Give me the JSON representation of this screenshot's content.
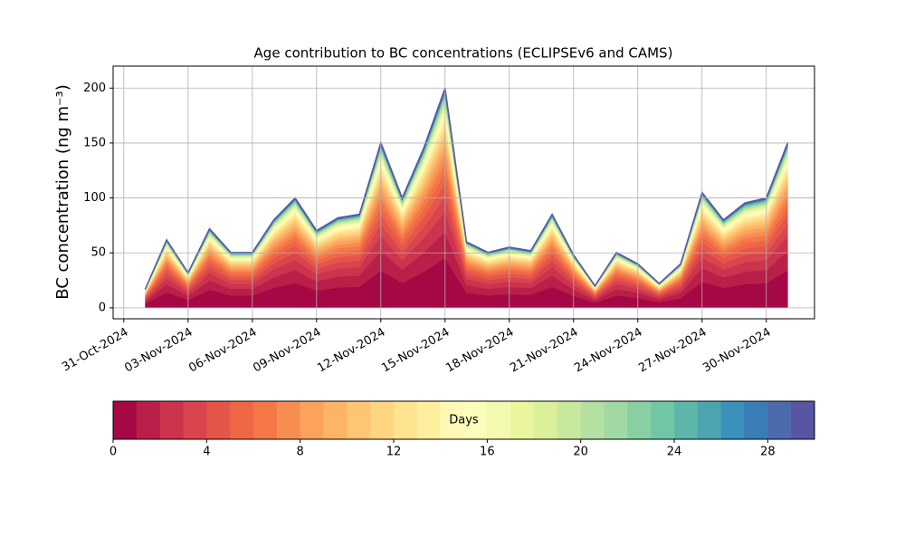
{
  "chart_data": {
    "type": "stacked_area",
    "title": "Age contribution to BC concentrations (ECLIPSEv6 and CAMS)",
    "ylabel": "BC concentration (ng m⁻³)",
    "x": [
      "2024-11-01",
      "2024-11-02",
      "2024-11-03",
      "2024-11-04",
      "2024-11-05",
      "2024-11-06",
      "2024-11-07",
      "2024-11-08",
      "2024-11-09",
      "2024-11-10",
      "2024-11-11",
      "2024-11-12",
      "2024-11-13",
      "2024-11-14",
      "2024-11-15",
      "2024-11-16",
      "2024-11-17",
      "2024-11-18",
      "2024-11-19",
      "2024-11-20",
      "2024-11-21",
      "2024-11-22",
      "2024-11-23",
      "2024-11-24",
      "2024-11-25",
      "2024-11-26",
      "2024-11-27",
      "2024-11-28",
      "2024-11-29",
      "2024-11-30",
      "2024-12-01"
    ],
    "xlim": [
      "2024-10-30T12:00",
      "2024-12-02T06:00"
    ],
    "xticks": [
      {
        "value": "2024-10-31",
        "label": "31-Oct-2024"
      },
      {
        "value": "2024-11-03",
        "label": "03-Nov-2024"
      },
      {
        "value": "2024-11-06",
        "label": "06-Nov-2024"
      },
      {
        "value": "2024-11-09",
        "label": "09-Nov-2024"
      },
      {
        "value": "2024-11-12",
        "label": "12-Nov-2024"
      },
      {
        "value": "2024-11-15",
        "label": "15-Nov-2024"
      },
      {
        "value": "2024-11-18",
        "label": "18-Nov-2024"
      },
      {
        "value": "2024-11-21",
        "label": "21-Nov-2024"
      },
      {
        "value": "2024-11-24",
        "label": "24-Nov-2024"
      },
      {
        "value": "2024-11-27",
        "label": "27-Nov-2024"
      },
      {
        "value": "2024-11-30",
        "label": "30-Nov-2024"
      }
    ],
    "ylim": [
      -10,
      220
    ],
    "yticks": [
      0,
      50,
      100,
      150,
      200
    ],
    "grid": true,
    "series": [
      {
        "color": "#a50844",
        "values": [
          3.8,
          14.0,
          7.2,
          16.3,
          11.3,
          11.3,
          18.1,
          22.6,
          15.8,
          18.5,
          19.2,
          33.9,
          22.6,
          32.8,
          45.2,
          13.6,
          11.3,
          12.4,
          11.8,
          19.2,
          10.8,
          4.5,
          11.3,
          9.0,
          5.0,
          9.0,
          23.7,
          18.1,
          21.5,
          22.6,
          33.9
        ]
      },
      {
        "color": "#b91f48",
        "values": [
          2.0,
          7.4,
          3.8,
          8.6,
          6,
          6,
          9.6,
          12,
          8.4,
          9.8,
          10.2,
          18,
          12,
          17.4,
          24,
          7.2,
          6,
          6.6,
          6.2,
          10.2,
          5.8,
          2.4,
          6,
          4.8,
          2.6,
          4.8,
          12.6,
          9.6,
          11.4,
          12,
          18
        ]
      },
      {
        "color": "#cc334d",
        "values": [
          1.5,
          5.6,
          2.9,
          6.5,
          4.5,
          4.5,
          7.2,
          9,
          6.3,
          7.4,
          7.7,
          13.5,
          9,
          13.1,
          18,
          5.4,
          4.5,
          5,
          4.7,
          7.7,
          4.3,
          1.8,
          4.5,
          3.6,
          2,
          3.6,
          9.5,
          7.2,
          8.6,
          9,
          13.5
        ]
      },
      {
        "color": "#d9444e",
        "values": [
          1.2,
          4.3,
          2.2,
          5,
          3.5,
          3.5,
          5.6,
          7,
          4.9,
          5.7,
          6,
          10.5,
          7,
          10.2,
          14,
          4.2,
          3.5,
          3.9,
          3.6,
          6,
          3.4,
          1.4,
          3.5,
          2.8,
          1.5,
          2.8,
          7.4,
          5.6,
          6.7,
          7,
          10.5
        ]
      },
      {
        "color": "#e5554a",
        "values": [
          1,
          3.7,
          1.9,
          4.3,
          3,
          3,
          4.8,
          6,
          4.2,
          4.9,
          5.1,
          9,
          6,
          8.7,
          12,
          3.6,
          3,
          3.3,
          3.1,
          5.1,
          2.9,
          1.2,
          3,
          2.4,
          1.3,
          2.4,
          6.3,
          4.8,
          5.7,
          6,
          9
        ]
      },
      {
        "color": "#ef6645",
        "values": [
          0.9,
          3.1,
          1.6,
          3.6,
          2.5,
          2.5,
          4,
          5,
          3.5,
          4.1,
          4.3,
          7.5,
          5,
          7.3,
          10,
          3,
          2.5,
          2.8,
          2.6,
          4.3,
          2.4,
          1,
          2.5,
          2,
          1.1,
          2,
          5.3,
          4,
          4.8,
          5,
          7.5
        ]
      },
      {
        "color": "#f57748",
        "values": [
          0.8,
          2.8,
          1.4,
          3.2,
          2.3,
          2.3,
          3.6,
          4.5,
          3.2,
          3.7,
          3.8,
          6.8,
          4.5,
          6.5,
          9,
          2.7,
          2.3,
          2.5,
          2.3,
          3.8,
          2.2,
          0.9,
          2.3,
          1.8,
          1,
          1.8,
          4.7,
          3.6,
          4.3,
          4.5,
          6.8
        ]
      },
      {
        "color": "#f88d52",
        "values": [
          0.7,
          2.5,
          1.3,
          2.9,
          2,
          2,
          3.2,
          4,
          2.8,
          3.3,
          3.4,
          6,
          4,
          5.8,
          8,
          2.4,
          2,
          2.2,
          2.1,
          3.4,
          1.9,
          0.8,
          2,
          1.6,
          0.9,
          1.6,
          4.2,
          3.2,
          3.8,
          4,
          6
        ]
      },
      {
        "color": "#fba25c",
        "values": [
          0.6,
          2.2,
          1.1,
          2.5,
          1.8,
          1.8,
          2.8,
          3.5,
          2.5,
          2.9,
          3,
          5.3,
          3.5,
          5.1,
          7,
          2.1,
          1.8,
          1.9,
          1.8,
          3,
          1.7,
          0.7,
          1.8,
          1.4,
          0.8,
          1.4,
          3.7,
          2.8,
          3.3,
          3.5,
          5.3
        ]
      },
      {
        "color": "#fdb466",
        "values": [
          0.5,
          1.9,
          1,
          2.2,
          1.5,
          1.5,
          2.4,
          3,
          2.1,
          2.5,
          2.6,
          4.5,
          3,
          4.4,
          6,
          1.8,
          1.5,
          1.7,
          1.6,
          2.6,
          1.4,
          0.6,
          1.5,
          1.2,
          0.7,
          1.2,
          3.2,
          2.4,
          2.9,
          3,
          4.5
        ]
      },
      {
        "color": "#fdc574",
        "values": [
          0.5,
          1.7,
          0.9,
          2,
          1.4,
          1.4,
          2.2,
          2.8,
          2,
          2.3,
          2.4,
          4.2,
          2.8,
          4.1,
          5.6,
          1.7,
          1.4,
          1.5,
          1.5,
          2.4,
          1.3,
          0.6,
          1.4,
          1.1,
          0.6,
          1.1,
          2.9,
          2.2,
          2.7,
          2.8,
          4.2
        ]
      },
      {
        "color": "#fed681",
        "values": [
          0.4,
          1.6,
          0.8,
          1.8,
          1.3,
          1.3,
          2,
          2.5,
          1.8,
          2.1,
          2.1,
          3.8,
          2.5,
          3.6,
          5,
          1.5,
          1.3,
          1.4,
          1.3,
          2.1,
          1.2,
          0.5,
          1.3,
          1,
          0.6,
          1,
          2.6,
          2,
          2.4,
          2.5,
          3.8
        ]
      },
      {
        "color": "#fee390",
        "values": [
          0.4,
          1.4,
          0.7,
          1.6,
          1.1,
          1.1,
          1.8,
          2.2,
          1.5,
          1.8,
          1.9,
          3.3,
          2.2,
          3.2,
          4.4,
          1.3,
          1.1,
          1.2,
          1.1,
          1.9,
          1.1,
          0.4,
          1.1,
          0.9,
          0.5,
          0.9,
          2.3,
          1.8,
          2.1,
          2.2,
          3.3
        ]
      },
      {
        "color": "#feef9f",
        "values": [
          0.3,
          1.2,
          0.6,
          1.4,
          1,
          1,
          1.6,
          2,
          1.4,
          1.6,
          1.7,
          3,
          2,
          2.9,
          4,
          1.2,
          1,
          1.1,
          1,
          1.7,
          1,
          0.4,
          1,
          0.8,
          0.4,
          0.8,
          2.1,
          1.6,
          1.9,
          2,
          3
        ]
      },
      {
        "color": "#fefab6",
        "values": [
          0.3,
          1.1,
          0.6,
          1.3,
          0.9,
          0.9,
          1.4,
          1.8,
          1.3,
          1.5,
          1.5,
          2.7,
          1.8,
          2.6,
          3.6,
          1.1,
          0.9,
          1,
          0.9,
          1.5,
          0.9,
          0.4,
          0.9,
          0.7,
          0.4,
          0.7,
          1.9,
          1.4,
          1.7,
          1.8,
          2.7
        ]
      },
      {
        "color": "#fbfdbb",
        "values": [
          0.3,
          1,
          0.5,
          1.2,
          0.8,
          0.8,
          1.3,
          1.6,
          1.1,
          1.3,
          1.4,
          2.4,
          1.6,
          2.3,
          3.2,
          1,
          0.8,
          0.9,
          0.8,
          1.4,
          0.8,
          0.3,
          0.8,
          0.6,
          0.4,
          0.6,
          1.7,
          1.3,
          1.5,
          1.6,
          2.4
        ]
      },
      {
        "color": "#f3faaf",
        "values": [
          0.2,
          0.9,
          0.4,
          1,
          0.7,
          0.7,
          1.1,
          1.4,
          1,
          1.1,
          1.2,
          2.1,
          1.4,
          2,
          2.8,
          0.8,
          0.7,
          0.8,
          0.7,
          1.2,
          0.7,
          0.3,
          0.7,
          0.6,
          0.3,
          0.6,
          1.5,
          1.1,
          1.3,
          1.4,
          2.1
        ]
      },
      {
        "color": "#e9f69c",
        "values": [
          0.2,
          0.7,
          0.4,
          0.9,
          0.6,
          0.6,
          1,
          1.2,
          0.8,
          1,
          1,
          1.8,
          1.2,
          1.7,
          2.4,
          0.7,
          0.6,
          0.7,
          0.6,
          1,
          0.6,
          0.2,
          0.6,
          0.5,
          0.3,
          0.5,
          1.3,
          1,
          1.1,
          1.2,
          1.8
        ]
      },
      {
        "color": "#dcf09a",
        "values": [
          0.2,
          0.7,
          0.4,
          0.8,
          0.6,
          0.6,
          0.9,
          1.1,
          0.8,
          0.9,
          0.9,
          1.7,
          1.1,
          1.6,
          2.2,
          0.7,
          0.6,
          0.6,
          0.6,
          0.9,
          0.5,
          0.2,
          0.6,
          0.4,
          0.2,
          0.4,
          1.2,
          0.9,
          1,
          1.1,
          1.7
        ]
      },
      {
        "color": "#c8e89e",
        "values": [
          0.2,
          0.6,
          0.3,
          0.7,
          0.5,
          0.5,
          0.8,
          1,
          0.7,
          0.8,
          0.9,
          1.5,
          1,
          1.5,
          2,
          0.6,
          0.5,
          0.6,
          0.5,
          0.9,
          0.5,
          0.2,
          0.5,
          0.4,
          0.2,
          0.4,
          1.1,
          0.8,
          1,
          1,
          1.5
        ]
      },
      {
        "color": "#b4e0a2",
        "values": [
          0.2,
          0.6,
          0.3,
          0.6,
          0.5,
          0.5,
          0.7,
          0.9,
          0.6,
          0.7,
          0.8,
          1.4,
          0.9,
          1.3,
          1.8,
          0.5,
          0.5,
          0.5,
          0.5,
          0.8,
          0.4,
          0.2,
          0.5,
          0.4,
          0.2,
          0.4,
          0.9,
          0.7,
          0.9,
          0.9,
          1.4
        ]
      },
      {
        "color": "#a1d9a4",
        "values": [
          0.1,
          0.5,
          0.3,
          0.6,
          0.4,
          0.4,
          0.6,
          0.8,
          0.6,
          0.7,
          0.7,
          1.2,
          0.8,
          1.2,
          1.6,
          0.5,
          0.4,
          0.4,
          0.4,
          0.7,
          0.4,
          0.2,
          0.4,
          0.3,
          0.2,
          0.3,
          0.8,
          0.6,
          0.8,
          0.8,
          1.2
        ]
      },
      {
        "color": "#88d0a4",
        "values": [
          0.1,
          0.4,
          0.2,
          0.5,
          0.4,
          0.4,
          0.6,
          0.7,
          0.5,
          0.6,
          0.6,
          1.1,
          0.7,
          1,
          1.4,
          0.4,
          0.4,
          0.4,
          0.4,
          0.6,
          0.3,
          0.1,
          0.4,
          0.3,
          0.2,
          0.3,
          0.7,
          0.6,
          0.7,
          0.7,
          1.1
        ]
      },
      {
        "color": "#71c7a5",
        "values": [
          0.1,
          0.4,
          0.2,
          0.4,
          0.3,
          0.3,
          0.5,
          0.6,
          0.4,
          0.5,
          0.5,
          0.9,
          0.6,
          0.9,
          1.2,
          0.4,
          0.3,
          0.3,
          0.3,
          0.5,
          0.3,
          0.1,
          0.3,
          0.2,
          0.1,
          0.2,
          0.6,
          0.5,
          0.6,
          0.6,
          0.9
        ]
      },
      {
        "color": "#5db6aa",
        "values": [
          0.1,
          0.4,
          0.2,
          0.4,
          0.3,
          0.3,
          0.5,
          0.6,
          0.4,
          0.5,
          0.5,
          0.9,
          0.6,
          0.9,
          1.2,
          0.4,
          0.3,
          0.3,
          0.3,
          0.5,
          0.3,
          0.1,
          0.3,
          0.2,
          0.1,
          0.2,
          0.6,
          0.5,
          0.6,
          0.6,
          0.9
        ]
      },
      {
        "color": "#4ca4b1",
        "values": [
          0.1,
          0.3,
          0.2,
          0.4,
          0.3,
          0.3,
          0.4,
          0.5,
          0.4,
          0.4,
          0.4,
          0.8,
          0.5,
          0.7,
          1,
          0.3,
          0.3,
          0.3,
          0.3,
          0.4,
          0.2,
          0.1,
          0.3,
          0.2,
          0.1,
          0.2,
          0.5,
          0.4,
          0.5,
          0.5,
          0.8
        ]
      },
      {
        "color": "#3a91b9",
        "values": [
          0.1,
          0.3,
          0.2,
          0.4,
          0.3,
          0.3,
          0.4,
          0.5,
          0.4,
          0.4,
          0.4,
          0.8,
          0.5,
          0.7,
          1,
          0.3,
          0.3,
          0.3,
          0.3,
          0.4,
          0.2,
          0.1,
          0.3,
          0.2,
          0.1,
          0.2,
          0.5,
          0.4,
          0.5,
          0.5,
          0.8
        ]
      },
      {
        "color": "#3b7db7",
        "values": [
          0.1,
          0.2,
          0.1,
          0.3,
          0.2,
          0.2,
          0.3,
          0.4,
          0.3,
          0.3,
          0.3,
          0.6,
          0.4,
          0.6,
          0.8,
          0.2,
          0.2,
          0.2,
          0.2,
          0.3,
          0.2,
          0.1,
          0.2,
          0.2,
          0.1,
          0.2,
          0.4,
          0.3,
          0.4,
          0.4,
          0.6
        ]
      },
      {
        "color": "#4c6aad",
        "values": [
          0.1,
          0.2,
          0.1,
          0.3,
          0.2,
          0.2,
          0.3,
          0.4,
          0.3,
          0.3,
          0.3,
          0.6,
          0.4,
          0.6,
          0.8,
          0.2,
          0.2,
          0.2,
          0.2,
          0.3,
          0.2,
          0.1,
          0.2,
          0.2,
          0.1,
          0.2,
          0.4,
          0.3,
          0.4,
          0.4,
          0.6
        ]
      },
      {
        "color": "#5955a5",
        "values": [
          0.1,
          0.2,
          0.1,
          0.3,
          0.2,
          0.2,
          0.3,
          0.4,
          0.3,
          0.3,
          0.3,
          0.6,
          0.4,
          0.6,
          0.8,
          0.2,
          0.2,
          0.2,
          0.2,
          0.3,
          0.2,
          0.1,
          0.2,
          0.2,
          0.1,
          0.2,
          0.4,
          0.3,
          0.4,
          0.4,
          0.6
        ]
      }
    ],
    "colorbar": {
      "label": "Days",
      "lim": [
        0,
        30
      ],
      "ticks": [
        0,
        4,
        8,
        12,
        16,
        20,
        24,
        28
      ]
    }
  }
}
